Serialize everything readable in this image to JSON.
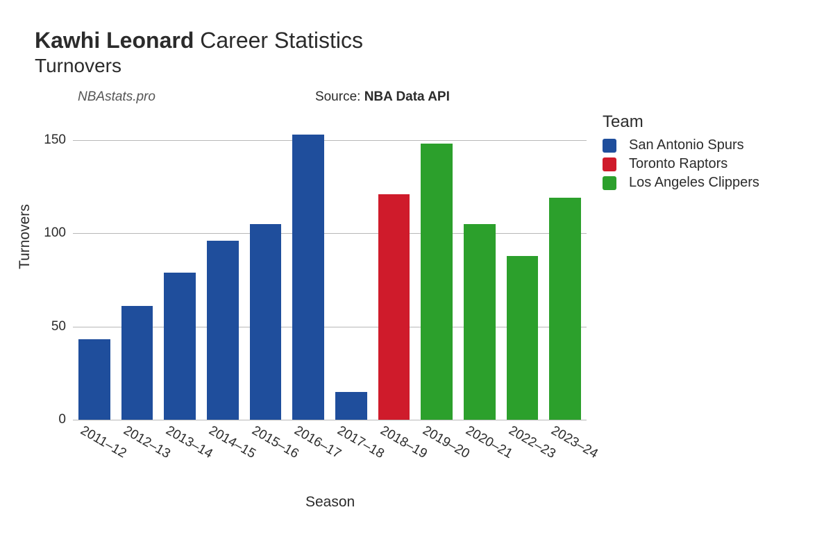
{
  "title": {
    "name_bold": "Kawhi Leonard",
    "rest": " Career Statistics",
    "subtitle": "Turnovers",
    "title_fontsize": 32,
    "subtitle_fontsize": 28
  },
  "watermark": "NBAstats.pro",
  "source_prefix": "Source: ",
  "source_bold": "NBA Data API",
  "chart": {
    "type": "bar",
    "ylabel": "Turnovers",
    "xlabel": "Season",
    "label_fontsize": 21,
    "tick_fontsize": 19,
    "ylim": [
      0,
      160
    ],
    "yticks": [
      0,
      50,
      100,
      150
    ],
    "background_color": "#ffffff",
    "grid_color": "#b8b8b8",
    "axis_line": false,
    "bar_width_ratio": 0.74,
    "x_tick_rotation": 30,
    "categories": [
      "2011–12",
      "2012–13",
      "2013–14",
      "2014–15",
      "2015–16",
      "2016–17",
      "2017–18",
      "2018–19",
      "2019–20",
      "2020–21",
      "2022–23",
      "2023–24"
    ],
    "values": [
      43,
      61,
      79,
      96,
      105,
      153,
      15,
      121,
      148,
      105,
      88,
      119
    ],
    "bar_colors": [
      "#1f4e9c",
      "#1f4e9c",
      "#1f4e9c",
      "#1f4e9c",
      "#1f4e9c",
      "#1f4e9c",
      "#1f4e9c",
      "#cf1b2b",
      "#2ca02c",
      "#2ca02c",
      "#2ca02c",
      "#2ca02c"
    ]
  },
  "legend": {
    "title": "Team",
    "title_fontsize": 24,
    "item_fontsize": 20,
    "items": [
      {
        "label": "San Antonio Spurs",
        "color": "#1f4e9c"
      },
      {
        "label": "Toronto Raptors",
        "color": "#cf1b2b"
      },
      {
        "label": "Los Angeles Clippers",
        "color": "#2ca02c"
      }
    ]
  }
}
